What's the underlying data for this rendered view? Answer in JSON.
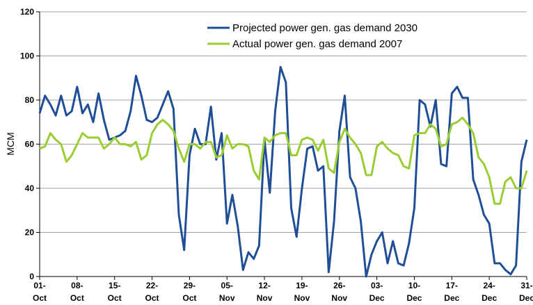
{
  "chart_data": {
    "type": "line",
    "y_label": "MCM",
    "categories": [
      "01-Oct",
      null,
      null,
      null,
      null,
      null,
      null,
      "08-Oct",
      null,
      null,
      null,
      null,
      null,
      null,
      "15-Oct",
      null,
      null,
      null,
      null,
      null,
      null,
      "22-Oct",
      null,
      null,
      null,
      null,
      null,
      null,
      "29-Oct",
      null,
      null,
      null,
      null,
      null,
      null,
      "05-Nov",
      null,
      null,
      null,
      null,
      null,
      null,
      "12-Nov",
      null,
      null,
      null,
      null,
      null,
      null,
      "19-Nov",
      null,
      null,
      null,
      null,
      null,
      null,
      "26-Nov",
      null,
      null,
      null,
      null,
      null,
      null,
      "03-Dec",
      null,
      null,
      null,
      null,
      null,
      null,
      "10-Dec",
      null,
      null,
      null,
      null,
      null,
      null,
      "17-Dec",
      null,
      null,
      null,
      null,
      null,
      null,
      "24-Dec",
      null,
      null,
      null,
      null,
      null,
      null,
      "31-Dec"
    ],
    "series": [
      {
        "name": "Projected power gen. gas demand 2030",
        "color": "#1f4e96",
        "values": [
          74,
          82,
          78,
          73,
          82,
          73,
          75,
          86,
          74,
          78,
          70,
          83,
          71,
          62,
          63,
          64,
          66,
          75,
          91,
          82,
          71,
          70,
          72,
          78,
          84,
          76,
          28,
          12,
          55,
          67,
          60,
          60,
          77,
          53,
          65,
          24,
          37,
          23,
          3,
          11,
          8,
          14,
          62,
          38,
          75,
          95,
          88,
          31,
          18,
          40,
          58,
          59,
          48,
          50,
          2,
          25,
          66,
          82,
          45,
          40,
          25,
          0,
          10,
          16,
          20,
          6,
          16,
          6,
          5,
          15,
          31,
          80,
          78,
          68,
          80,
          51,
          50,
          83,
          86,
          81,
          81,
          44,
          37,
          28,
          24,
          6,
          6,
          3,
          1,
          5,
          52,
          62
        ]
      },
      {
        "name": "Actual power gen. gas demand 2007",
        "color": "#9acd32",
        "values": [
          58,
          59,
          65,
          62,
          60,
          52,
          55,
          60,
          65,
          63,
          63,
          63,
          58,
          60,
          63,
          60,
          60,
          59,
          61,
          53,
          55,
          65,
          69,
          71,
          69,
          66,
          58,
          52,
          60,
          60,
          58,
          61,
          61,
          54,
          55,
          64,
          58,
          60,
          60,
          59,
          48,
          44,
          63,
          61,
          64,
          65,
          65,
          55,
          55,
          62,
          63,
          62,
          57,
          62,
          49,
          47,
          61,
          67,
          63,
          60,
          56,
          46,
          46,
          59,
          61,
          58,
          56,
          55,
          50,
          49,
          64,
          65,
          65,
          69,
          67,
          59,
          60,
          69,
          70,
          72,
          69,
          65,
          54,
          51,
          45,
          33,
          33,
          43,
          45,
          40,
          40,
          48
        ]
      }
    ],
    "ylim": [
      0,
      120
    ],
    "yticks": [
      0,
      20,
      40,
      60,
      80,
      100,
      120
    ],
    "grid": true
  }
}
